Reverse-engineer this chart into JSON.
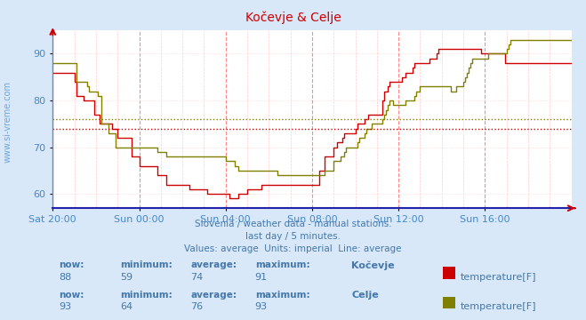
{
  "title": "Kočevje & Celje",
  "subtitle1": "Slovenia / weather data - manual stations.",
  "subtitle2": "last day / 5 minutes.",
  "subtitle3": "Values: average  Units: imperial  Line: average",
  "bg_color": "#d8e8f8",
  "plot_bg_color": "#ffffff",
  "xlabel_color": "#4488cc",
  "title_color": "#cc0000",
  "watermark_color": "#4488cc",
  "x_tick_labels": [
    "Sat 20:00",
    "Sun 00:00",
    "Sun 04:00",
    "Sun 08:00",
    "Sun 12:00",
    "Sun 16:00"
  ],
  "x_tick_positions": [
    0,
    48,
    96,
    144,
    192,
    240
  ],
  "ylim": [
    57,
    95
  ],
  "yticks": [
    60,
    70,
    80,
    90
  ],
  "total_points": 289,
  "kocevje_color": "#cc0000",
  "celje_color": "#808000",
  "kocevje_avg": 74,
  "celje_avg": 76,
  "kocevje_now": 88,
  "kocevje_min": 59,
  "kocevje_max": 91,
  "celje_now": 93,
  "celje_min": 64,
  "celje_max": 93,
  "kocevje_data": [
    86,
    86,
    86,
    86,
    86,
    86,
    86,
    86,
    86,
    86,
    86,
    86,
    84,
    81,
    81,
    81,
    81,
    80,
    80,
    80,
    80,
    80,
    80,
    77,
    77,
    77,
    75,
    75,
    75,
    75,
    75,
    75,
    75,
    74,
    74,
    74,
    72,
    72,
    72,
    72,
    72,
    72,
    72,
    72,
    68,
    68,
    68,
    68,
    66,
    66,
    66,
    66,
    66,
    66,
    66,
    66,
    66,
    66,
    64,
    64,
    64,
    64,
    64,
    62,
    62,
    62,
    62,
    62,
    62,
    62,
    62,
    62,
    62,
    62,
    62,
    62,
    61,
    61,
    61,
    61,
    61,
    61,
    61,
    61,
    61,
    61,
    60,
    60,
    60,
    60,
    60,
    60,
    60,
    60,
    60,
    60,
    60,
    60,
    59,
    59,
    59,
    59,
    59,
    60,
    60,
    60,
    60,
    60,
    61,
    61,
    61,
    61,
    61,
    61,
    61,
    61,
    62,
    62,
    62,
    62,
    62,
    62,
    62,
    62,
    62,
    62,
    62,
    62,
    62,
    62,
    62,
    62,
    62,
    62,
    62,
    62,
    62,
    62,
    62,
    62,
    62,
    62,
    62,
    62,
    62,
    62,
    62,
    62,
    65,
    65,
    65,
    68,
    68,
    68,
    68,
    68,
    70,
    70,
    71,
    71,
    71,
    72,
    73,
    73,
    73,
    73,
    73,
    73,
    74,
    75,
    75,
    75,
    75,
    76,
    76,
    77,
    77,
    77,
    77,
    77,
    77,
    77,
    77,
    80,
    82,
    82,
    83,
    84,
    84,
    84,
    84,
    84,
    84,
    84,
    85,
    85,
    86,
    86,
    86,
    86,
    87,
    88,
    88,
    88,
    88,
    88,
    88,
    88,
    88,
    89,
    89,
    89,
    89,
    90,
    91,
    91,
    91,
    91,
    91,
    91,
    91,
    91,
    91,
    91,
    91,
    91,
    91,
    91,
    91,
    91,
    91,
    91,
    91,
    91,
    91,
    91,
    91,
    91,
    90,
    90,
    90,
    90,
    90,
    90,
    90,
    90,
    90,
    90,
    90,
    90,
    90,
    88,
    88,
    88,
    88,
    88,
    88,
    88,
    88,
    88,
    88,
    88,
    88,
    88,
    88,
    88,
    88,
    88,
    88,
    88,
    88,
    88,
    88,
    88,
    88,
    88,
    88,
    88,
    88,
    88,
    88,
    88,
    88,
    88,
    88,
    88,
    88,
    88,
    88
  ],
  "celje_data": [
    88,
    88,
    88,
    88,
    88,
    88,
    88,
    88,
    88,
    88,
    88,
    88,
    88,
    84,
    84,
    84,
    84,
    84,
    84,
    83,
    82,
    82,
    82,
    82,
    82,
    81,
    81,
    75,
    75,
    75,
    75,
    73,
    73,
    73,
    73,
    70,
    70,
    70,
    70,
    70,
    70,
    70,
    70,
    70,
    70,
    70,
    70,
    70,
    70,
    70,
    70,
    70,
    70,
    70,
    70,
    70,
    70,
    70,
    69,
    69,
    69,
    69,
    69,
    68,
    68,
    68,
    68,
    68,
    68,
    68,
    68,
    68,
    68,
    68,
    68,
    68,
    68,
    68,
    68,
    68,
    68,
    68,
    68,
    68,
    68,
    68,
    68,
    68,
    68,
    68,
    68,
    68,
    68,
    68,
    68,
    68,
    67,
    67,
    67,
    67,
    67,
    66,
    66,
    65,
    65,
    65,
    65,
    65,
    65,
    65,
    65,
    65,
    65,
    65,
    65,
    65,
    65,
    65,
    65,
    65,
    65,
    65,
    65,
    65,
    65,
    64,
    64,
    64,
    64,
    64,
    64,
    64,
    64,
    64,
    64,
    64,
    64,
    64,
    64,
    64,
    64,
    64,
    64,
    64,
    64,
    64,
    64,
    64,
    64,
    64,
    64,
    65,
    65,
    65,
    65,
    65,
    67,
    67,
    67,
    67,
    68,
    68,
    69,
    70,
    70,
    70,
    70,
    70,
    70,
    71,
    72,
    72,
    72,
    73,
    74,
    74,
    74,
    75,
    75,
    75,
    75,
    75,
    75,
    76,
    77,
    78,
    79,
    80,
    80,
    79,
    79,
    79,
    79,
    79,
    79,
    79,
    80,
    80,
    80,
    80,
    80,
    81,
    82,
    82,
    83,
    83,
    83,
    83,
    83,
    83,
    83,
    83,
    83,
    83,
    83,
    83,
    83,
    83,
    83,
    83,
    83,
    82,
    82,
    82,
    83,
    83,
    83,
    83,
    84,
    85,
    86,
    87,
    88,
    89,
    89,
    89,
    89,
    89,
    89,
    89,
    89,
    89,
    90,
    90,
    90,
    90,
    90,
    90,
    90,
    90,
    90,
    90,
    91,
    92,
    93,
    93,
    93,
    93,
    93,
    93,
    93,
    93,
    93,
    93,
    93,
    93,
    93,
    93,
    93,
    93,
    93,
    93,
    93,
    93,
    93,
    93,
    93,
    93,
    93,
    93,
    93,
    93,
    93,
    93,
    93,
    93,
    93,
    93,
    93
  ]
}
